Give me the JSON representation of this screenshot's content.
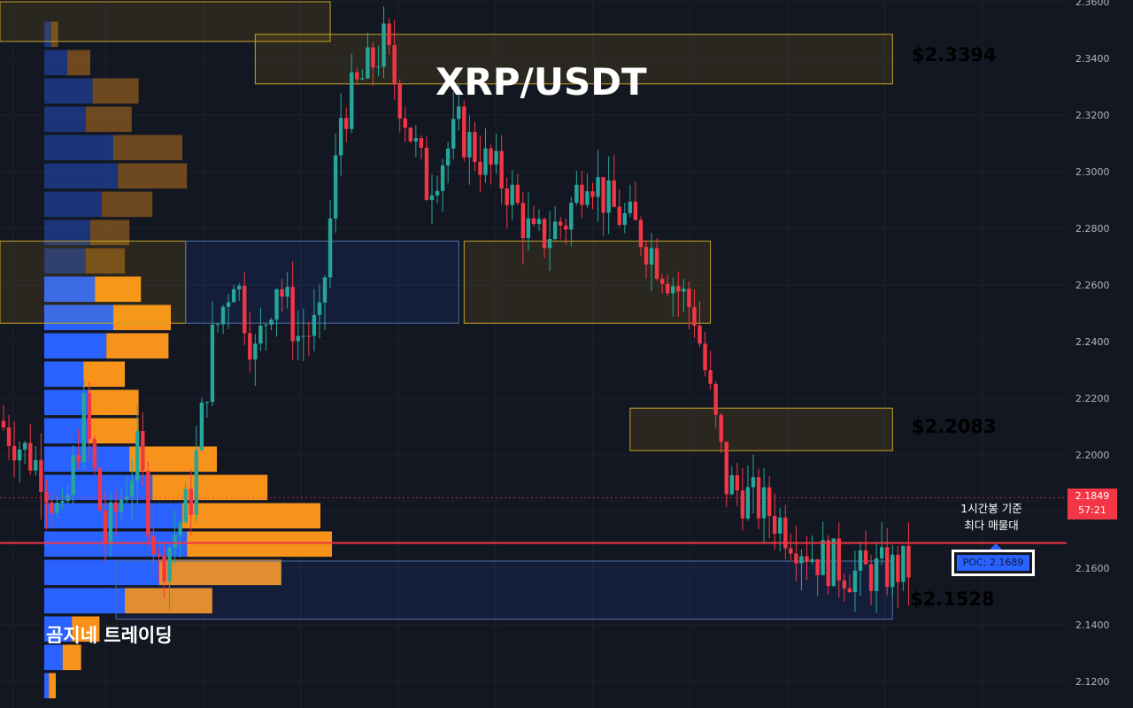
{
  "title": "XRP/USDT",
  "brand": "곰지네 트레이딩",
  "levels": [
    {
      "label": "$2.3394",
      "color": "#f0b90b"
    },
    {
      "label": "$2.2083",
      "color": "#f0b90b"
    },
    {
      "label": "$2.1528",
      "color": "#29a3e8"
    }
  ],
  "note": {
    "line1": "1시간봉 기준",
    "line2": "최다 매물대"
  },
  "poc": {
    "label": "POC: 2.1689",
    "value": 2.1689
  },
  "current": {
    "price": "2.1849",
    "countdown": "57:21",
    "value": 2.1849
  },
  "colors": {
    "up": "#26a69a",
    "down": "#f23645",
    "poc_line": "#f23645"
  },
  "chart_data": {
    "type": "candlestick",
    "y_axis": {
      "ticks": [
        "2.3600",
        "2.3400",
        "2.3200",
        "2.3000",
        "2.2800",
        "2.2600",
        "2.2400",
        "2.2200",
        "2.2000",
        "2.1800",
        "2.1600",
        "2.1400",
        "2.1200"
      ],
      "range": [
        2.115,
        2.36
      ],
      "position": "right"
    },
    "candle_count": 170,
    "waypoints": [
      [
        0,
        2.212
      ],
      [
        8,
        2.195
      ],
      [
        12,
        2.175
      ],
      [
        16,
        2.215
      ],
      [
        20,
        2.17
      ],
      [
        26,
        2.2
      ],
      [
        30,
        2.16
      ],
      [
        36,
        2.185
      ],
      [
        40,
        2.24
      ],
      [
        44,
        2.265
      ],
      [
        48,
        2.235
      ],
      [
        52,
        2.262
      ],
      [
        56,
        2.242
      ],
      [
        60,
        2.245
      ],
      [
        64,
        2.32
      ],
      [
        72,
        2.345
      ],
      [
        80,
        2.295
      ],
      [
        86,
        2.315
      ],
      [
        90,
        2.305
      ],
      [
        95,
        2.295
      ],
      [
        100,
        2.275
      ],
      [
        106,
        2.283
      ],
      [
        110,
        2.302
      ],
      [
        114,
        2.288
      ],
      [
        120,
        2.278
      ],
      [
        130,
        2.25
      ],
      [
        136,
        2.19
      ],
      [
        144,
        2.18
      ],
      [
        152,
        2.165
      ],
      [
        160,
        2.158
      ],
      [
        170,
        2.16
      ]
    ],
    "volume_profile": {
      "buy_color": "#2962ff",
      "sell_color": "#f7931a",
      "bins": [
        {
          "price": 2.3485,
          "buy": 3,
          "sell": 3,
          "faded": true
        },
        {
          "price": 2.3385,
          "buy": 10,
          "sell": 10,
          "faded": true
        },
        {
          "price": 2.3285,
          "buy": 21,
          "sell": 20,
          "faded": true
        },
        {
          "price": 2.3185,
          "buy": 18,
          "sell": 20,
          "faded": true
        },
        {
          "price": 2.3085,
          "buy": 30,
          "sell": 30,
          "faded": true
        },
        {
          "price": 2.2985,
          "buy": 32,
          "sell": 30,
          "faded": true
        },
        {
          "price": 2.2885,
          "buy": 25,
          "sell": 22,
          "faded": true
        },
        {
          "price": 2.2785,
          "buy": 20,
          "sell": 17,
          "faded": true
        },
        {
          "price": 2.2685,
          "buy": 18,
          "sell": 17,
          "faded": true
        },
        {
          "price": 2.2585,
          "buy": 22,
          "sell": 20,
          "faded": false
        },
        {
          "price": 2.2485,
          "buy": 30,
          "sell": 25,
          "faded": false
        },
        {
          "price": 2.2385,
          "buy": 27,
          "sell": 27,
          "faded": false
        },
        {
          "price": 2.2285,
          "buy": 17,
          "sell": 18,
          "faded": false
        },
        {
          "price": 2.2185,
          "buy": 19,
          "sell": 22,
          "faded": false
        },
        {
          "price": 2.2085,
          "buy": 19,
          "sell": 22,
          "faded": false
        },
        {
          "price": 2.1985,
          "buy": 37,
          "sell": 38,
          "faded": false
        },
        {
          "price": 2.1885,
          "buy": 47,
          "sell": 50,
          "faded": false
        },
        {
          "price": 2.1785,
          "buy": 60,
          "sell": 60,
          "faded": false
        },
        {
          "price": 2.1685,
          "buy": 62,
          "sell": 63,
          "faded": false
        },
        {
          "price": 2.1585,
          "buy": 50,
          "sell": 53,
          "faded": false
        },
        {
          "price": 2.1485,
          "buy": 35,
          "sell": 38,
          "faded": false
        },
        {
          "price": 2.1385,
          "buy": 12,
          "sell": 12,
          "faded": false
        },
        {
          "price": 2.1285,
          "buy": 8,
          "sell": 8,
          "faded": false
        },
        {
          "price": 2.1185,
          "buy": 2,
          "sell": 3,
          "faded": false
        }
      ]
    },
    "zones": [
      {
        "from": 0,
        "to": 61,
        "top": 2.36,
        "bottom": 2.346,
        "kind": "supply"
      },
      {
        "from": 47,
        "to": 166,
        "top": 2.3485,
        "bottom": 2.331,
        "kind": "supply"
      },
      {
        "from": 0,
        "to": 34,
        "top": 2.2755,
        "bottom": 2.2465,
        "kind": "supply"
      },
      {
        "from": 34,
        "to": 85,
        "top": 2.2755,
        "bottom": 2.2465,
        "kind": "demand"
      },
      {
        "from": 86,
        "to": 132,
        "top": 2.2755,
        "bottom": 2.2465,
        "kind": "supply"
      },
      {
        "from": 117,
        "to": 166,
        "top": 2.2165,
        "bottom": 2.2015,
        "kind": "supply"
      },
      {
        "from": 21,
        "to": 166,
        "top": 2.1625,
        "bottom": 2.142,
        "kind": "demand"
      }
    ]
  }
}
